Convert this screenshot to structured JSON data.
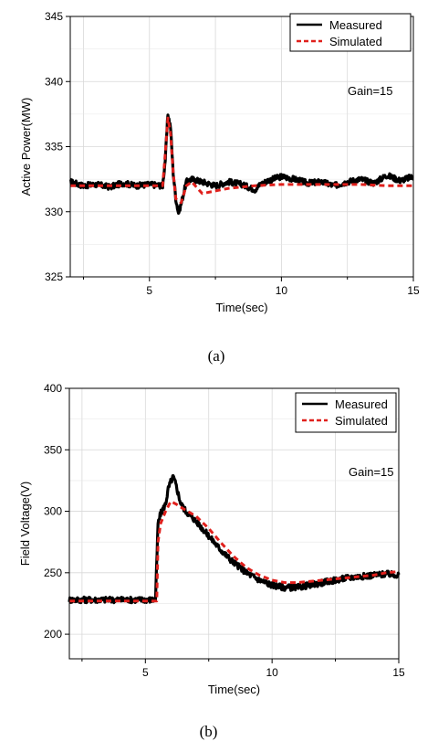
{
  "chart_data": [
    {
      "type": "line",
      "caption": "(a)",
      "xlabel": "Time(sec)",
      "ylabel": "Active Power(MW)",
      "xlim": [
        2,
        15
      ],
      "ylim": [
        325,
        345
      ],
      "xticks": [
        5,
        10,
        15
      ],
      "yticks": [
        325,
        330,
        335,
        340,
        345
      ],
      "grid": true,
      "legend_position": "top-right",
      "annotation": "Gain=15",
      "series": [
        {
          "name": "Measured",
          "style": "solid",
          "color": "#000000",
          "x": [
            2.0,
            2.5,
            3.0,
            3.5,
            4.0,
            4.5,
            5.0,
            5.5,
            5.6,
            5.7,
            5.8,
            5.9,
            6.0,
            6.1,
            6.2,
            6.4,
            6.6,
            7.0,
            7.5,
            8.0,
            8.5,
            9.0,
            9.2,
            9.5,
            10.0,
            10.5,
            11.0,
            11.5,
            12.0,
            12.5,
            13.0,
            13.5,
            14.0,
            14.5,
            15.0
          ],
          "y": [
            332.3,
            332.0,
            332.1,
            331.9,
            332.2,
            332.0,
            332.1,
            332.0,
            334.0,
            337.5,
            336.5,
            333.0,
            331.0,
            329.9,
            330.6,
            332.3,
            332.5,
            332.3,
            332.0,
            332.3,
            332.1,
            331.7,
            332.1,
            332.4,
            332.7,
            332.5,
            332.2,
            332.3,
            332.0,
            332.3,
            332.5,
            332.2,
            332.8,
            332.4,
            332.7
          ]
        },
        {
          "name": "Simulated",
          "style": "dashed",
          "color": "#e0201c",
          "x": [
            2.0,
            3.0,
            4.0,
            5.0,
            5.5,
            5.6,
            5.7,
            5.8,
            5.9,
            6.0,
            6.2,
            6.4,
            6.6,
            7.0,
            7.5,
            8.0,
            9.0,
            10.0,
            11.0,
            12.0,
            13.0,
            14.0,
            15.0
          ],
          "y": [
            332.0,
            332.0,
            332.0,
            332.0,
            332.0,
            334.5,
            337.2,
            336.0,
            333.0,
            331.0,
            330.7,
            332.0,
            332.3,
            331.4,
            331.6,
            331.8,
            332.0,
            332.1,
            332.1,
            332.1,
            332.1,
            332.0,
            332.0
          ]
        }
      ]
    },
    {
      "type": "line",
      "caption": "(b)",
      "xlabel": "Time(sec)",
      "ylabel": "Field Voltage(V)",
      "xlim": [
        2,
        15
      ],
      "ylim": [
        180,
        400
      ],
      "xticks": [
        5,
        10,
        15
      ],
      "yticks": [
        200,
        250,
        300,
        350,
        400
      ],
      "grid": true,
      "legend_position": "top-right",
      "annotation": "Gain=15",
      "series": [
        {
          "name": "Measured",
          "style": "solid",
          "color": "#000000",
          "x": [
            2.0,
            3.0,
            4.0,
            5.0,
            5.4,
            5.5,
            5.6,
            5.8,
            5.9,
            6.0,
            6.1,
            6.2,
            6.4,
            6.6,
            7.0,
            7.5,
            8.0,
            8.5,
            9.0,
            9.5,
            10.0,
            10.5,
            11.0,
            11.5,
            12.0,
            12.5,
            13.0,
            13.5,
            14.0,
            14.5,
            15.0
          ],
          "y": [
            228,
            228,
            228,
            228,
            228,
            290,
            298,
            306,
            318,
            324,
            328,
            322,
            306,
            300,
            292,
            280,
            268,
            258,
            250,
            244,
            240,
            238,
            238,
            240,
            242,
            244,
            246,
            247,
            248,
            249,
            248
          ]
        },
        {
          "name": "Simulated",
          "style": "dashed",
          "color": "#e0201c",
          "x": [
            2.0,
            3.0,
            4.0,
            5.0,
            5.45,
            5.5,
            5.6,
            5.8,
            6.0,
            6.2,
            6.5,
            7.0,
            7.5,
            8.0,
            8.5,
            9.0,
            9.5,
            10.0,
            10.5,
            11.0,
            11.5,
            12.0,
            12.5,
            13.0,
            13.5,
            14.0,
            14.5,
            15.0
          ],
          "y": [
            227,
            227,
            227,
            227,
            227,
            275,
            290,
            300,
            308,
            306,
            302,
            296,
            286,
            274,
            263,
            254,
            248,
            244,
            242,
            242,
            243,
            244,
            245,
            246,
            247,
            248,
            250,
            251
          ]
        }
      ]
    }
  ]
}
